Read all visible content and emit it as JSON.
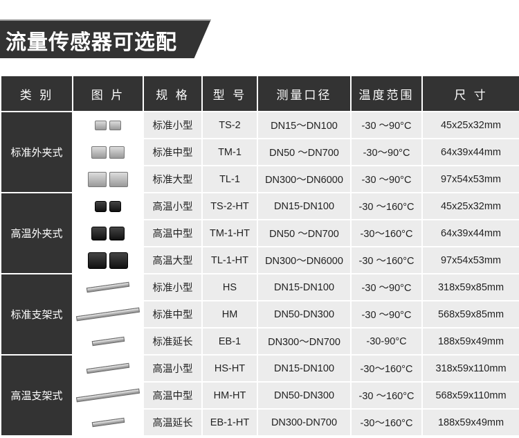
{
  "title": "流量传感器可选配",
  "headers": [
    "类 别",
    "图 片",
    "规 格",
    "型 号",
    "测量口径",
    "温度范围",
    "尺  寸"
  ],
  "groups": [
    {
      "category": "标准外夹式",
      "pic": "silver-block",
      "rows": [
        [
          "标准小型",
          "TS-2",
          "DN15～DN100",
          "-30 ～90°C",
          "45x25x32mm"
        ],
        [
          "标准中型",
          "TM-1",
          "DN50 ～DN700",
          "-30～90°C",
          "64x39x44mm"
        ],
        [
          "标准大型",
          "TL-1",
          "DN300～DN6000",
          "-30 ～90°C",
          "97x54x53mm"
        ]
      ]
    },
    {
      "category": "高温外夹式",
      "pic": "black-block",
      "rows": [
        [
          "高温小型",
          "TS-2-HT",
          "DN15-DN100",
          "-30 ～160°C",
          "45x25x32mm"
        ],
        [
          "高温中型",
          "TM-1-HT",
          "DN50 ～DN700",
          "-30～160°C",
          "64x39x44mm"
        ],
        [
          "高温大型",
          "TL-1-HT",
          "DN300～DN6000",
          "-30 ～160°C",
          "97x54x53mm"
        ]
      ]
    },
    {
      "category": "标准支架式",
      "pic": "rail",
      "rows": [
        [
          "标准小型",
          "HS",
          "DN15-DN100",
          "-30 ～90°C",
          "318x59x85mm"
        ],
        [
          "标准中型",
          "HM",
          "DN50-DN300",
          "-30 ～90°C",
          "568x59x85mm"
        ],
        [
          "标准延长",
          "EB-1",
          "DN300～DN700",
          "-30-90°C",
          "188x59x49mm"
        ]
      ]
    },
    {
      "category": "高温支架式",
      "pic": "rail",
      "rows": [
        [
          "高温小型",
          "HS-HT",
          "DN15-DN100",
          "-30～160°C",
          "318x59x110mm"
        ],
        [
          "高温中型",
          "HM-HT",
          "DN50-DN300",
          "-30 ～160°C",
          "568x59x110mm"
        ],
        [
          "高温延长",
          "EB-1-HT",
          "DN300-DN700",
          "-30～160°C",
          "188x59x49mm"
        ]
      ]
    }
  ]
}
